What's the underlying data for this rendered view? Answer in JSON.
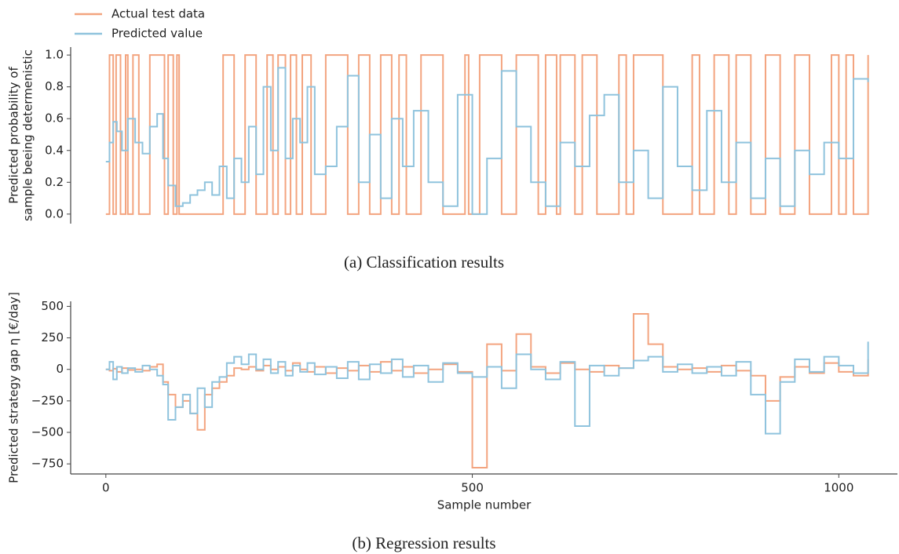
{
  "chart_data": [
    {
      "type": "line",
      "caption": "(a) Classification results",
      "ylabel": [
        "Predicted probability of",
        "sample beeing determenistic"
      ],
      "xlim": [
        -48,
        1080
      ],
      "ylim": [
        -0.06,
        1.05
      ],
      "yticks": [
        {
          "value": 0,
          "label": "0.0"
        },
        {
          "value": 0.2,
          "label": "0.2"
        },
        {
          "value": 0.4,
          "label": "0.4"
        },
        {
          "value": 0.6,
          "label": "0.6"
        },
        {
          "value": 0.8,
          "label": "0.8"
        },
        {
          "value": 1,
          "label": "1.0"
        }
      ],
      "legend": "upper left",
      "series": [
        {
          "name": "Actual test data",
          "color": "#f3a47f",
          "x": [
            0,
            5,
            10,
            14,
            20,
            27,
            30,
            37,
            45,
            60,
            80,
            85,
            92,
            97,
            100,
            160,
            175,
            190,
            205,
            220,
            228,
            235,
            245,
            252,
            260,
            268,
            280,
            300,
            330,
            345,
            360,
            375,
            390,
            400,
            410,
            430,
            460,
            490,
            495,
            510,
            540,
            560,
            590,
            600,
            615,
            620,
            640,
            650,
            670,
            700,
            710,
            720,
            760,
            800,
            810,
            830,
            850,
            860,
            880,
            900,
            920,
            940,
            960,
            990,
            1000,
            1010,
            1020,
            1040
          ],
          "values": [
            0,
            1,
            0,
            1,
            0,
            1,
            0,
            1,
            0,
            1,
            0,
            1,
            0,
            1,
            0,
            1,
            0,
            1,
            0,
            1,
            0,
            1,
            0,
            1,
            0,
            1,
            0,
            1,
            0,
            1,
            0,
            1,
            0,
            1,
            0,
            1,
            0,
            1,
            0,
            1,
            0,
            1,
            0,
            1,
            0,
            1,
            0,
            1,
            0,
            1,
            0,
            1,
            0,
            1,
            0,
            1,
            0,
            1,
            0,
            1,
            0,
            1,
            0,
            1,
            0,
            1,
            0,
            1
          ]
        },
        {
          "name": "Predicted value",
          "color": "#8fc3dd",
          "x": [
            0,
            5,
            10,
            15,
            22,
            30,
            40,
            50,
            60,
            70,
            78,
            85,
            95,
            105,
            115,
            125,
            135,
            145,
            155,
            165,
            175,
            185,
            195,
            205,
            215,
            225,
            235,
            245,
            255,
            265,
            275,
            285,
            300,
            315,
            330,
            345,
            360,
            375,
            390,
            405,
            420,
            440,
            460,
            480,
            500,
            520,
            540,
            560,
            580,
            600,
            620,
            640,
            660,
            680,
            700,
            720,
            740,
            760,
            780,
            800,
            820,
            840,
            860,
            880,
            900,
            920,
            940,
            960,
            980,
            1000,
            1020,
            1040
          ],
          "values": [
            0.33,
            0.45,
            0.58,
            0.52,
            0.4,
            0.6,
            0.45,
            0.38,
            0.55,
            0.63,
            0.35,
            0.18,
            0.05,
            0.07,
            0.12,
            0.15,
            0.2,
            0.12,
            0.3,
            0.1,
            0.35,
            0.2,
            0.55,
            0.25,
            0.8,
            0.4,
            0.92,
            0.35,
            0.6,
            0.45,
            0.8,
            0.25,
            0.3,
            0.55,
            0.87,
            0.2,
            0.5,
            0.1,
            0.6,
            0.3,
            0.65,
            0.2,
            0.05,
            0.75,
            0.0,
            0.35,
            0.9,
            0.55,
            0.2,
            0.05,
            0.45,
            0.3,
            0.62,
            0.75,
            0.2,
            0.4,
            0.1,
            0.8,
            0.3,
            0.15,
            0.65,
            0.2,
            0.45,
            0.1,
            0.35,
            0.05,
            0.4,
            0.25,
            0.45,
            0.35,
            0.85,
            0.83
          ]
        }
      ]
    },
    {
      "type": "line",
      "caption": "(b) Regression results",
      "ylabel": [
        "Predicted strategy gap η [€/day]"
      ],
      "xlabel": "Sample number",
      "xlim": [
        -48,
        1080
      ],
      "ylim": [
        -830,
        540
      ],
      "xticks": [
        0,
        500,
        1000
      ],
      "yticks": [
        500,
        250,
        0,
        {
          "value": -250,
          "label": "−250"
        },
        {
          "value": -500,
          "label": "−500"
        },
        {
          "value": -750,
          "label": "−750"
        }
      ],
      "series": [
        {
          "name": "Actual test data",
          "color": "#f3a47f",
          "x": [
            0,
            5,
            10,
            15,
            22,
            30,
            40,
            50,
            60,
            70,
            78,
            85,
            95,
            105,
            115,
            125,
            135,
            145,
            155,
            165,
            175,
            185,
            195,
            205,
            215,
            225,
            235,
            245,
            255,
            265,
            275,
            285,
            300,
            315,
            330,
            345,
            360,
            375,
            390,
            405,
            420,
            440,
            460,
            480,
            500,
            520,
            540,
            560,
            580,
            600,
            620,
            640,
            660,
            680,
            700,
            720,
            740,
            760,
            780,
            800,
            820,
            840,
            860,
            880,
            900,
            920,
            940,
            960,
            980,
            1000,
            1020,
            1040
          ],
          "values": [
            0,
            -10,
            5,
            -20,
            10,
            -5,
            0,
            -10,
            20,
            40,
            -100,
            -200,
            -300,
            -250,
            -350,
            -480,
            -200,
            -150,
            -100,
            -50,
            10,
            0,
            20,
            -10,
            30,
            0,
            20,
            -10,
            50,
            0,
            -20,
            20,
            -30,
            10,
            -10,
            30,
            -20,
            60,
            -10,
            20,
            -30,
            0,
            40,
            -20,
            -780,
            200,
            -10,
            280,
            20,
            -30,
            50,
            0,
            -20,
            30,
            10,
            440,
            200,
            20,
            0,
            10,
            -20,
            30,
            -10,
            -50,
            -250,
            -60,
            20,
            -30,
            50,
            -20,
            -50,
            80
          ]
        },
        {
          "name": "Predicted value",
          "color": "#8fc3dd",
          "x": [
            0,
            5,
            10,
            15,
            22,
            30,
            40,
            50,
            60,
            70,
            78,
            85,
            95,
            105,
            115,
            125,
            135,
            145,
            155,
            165,
            175,
            185,
            195,
            205,
            215,
            225,
            235,
            245,
            255,
            265,
            275,
            285,
            300,
            315,
            330,
            345,
            360,
            375,
            390,
            405,
            420,
            440,
            460,
            480,
            500,
            520,
            540,
            560,
            580,
            600,
            620,
            640,
            660,
            680,
            700,
            720,
            740,
            760,
            780,
            800,
            820,
            840,
            860,
            880,
            900,
            920,
            940,
            960,
            980,
            1000,
            1020,
            1040
          ],
          "values": [
            0,
            60,
            -80,
            20,
            -30,
            10,
            -20,
            30,
            0,
            -50,
            -120,
            -400,
            -300,
            -200,
            -350,
            -150,
            -300,
            -100,
            -60,
            50,
            100,
            40,
            120,
            0,
            80,
            -30,
            60,
            -50,
            30,
            -20,
            50,
            -40,
            20,
            -70,
            60,
            -80,
            40,
            -30,
            80,
            -60,
            30,
            -100,
            50,
            -30,
            -60,
            20,
            -150,
            120,
            0,
            -80,
            60,
            -450,
            30,
            -50,
            10,
            70,
            100,
            -20,
            40,
            -30,
            20,
            -50,
            60,
            -200,
            -510,
            -100,
            80,
            -20,
            100,
            30,
            -30,
            220
          ]
        }
      ]
    }
  ]
}
